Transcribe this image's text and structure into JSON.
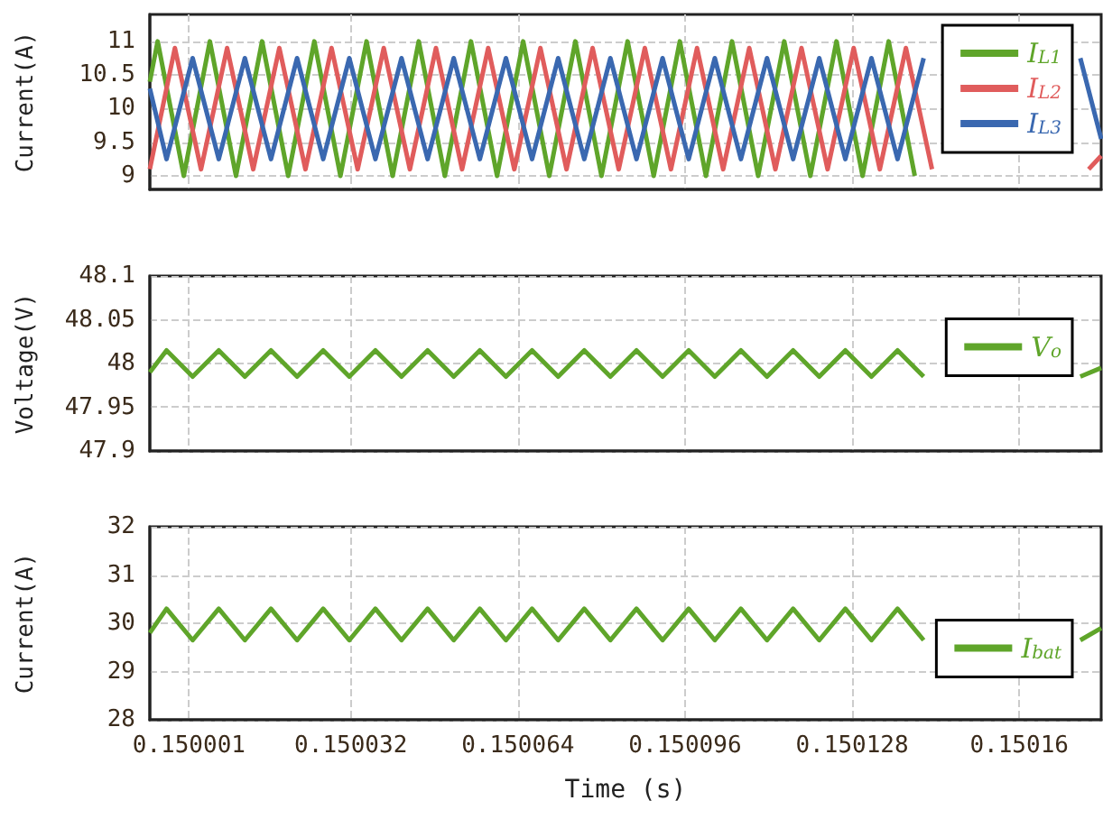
{
  "chart_data": [
    {
      "type": "line",
      "ylabel": "Current(A)",
      "xlim": [
        0.1499935,
        0.1501757
      ],
      "xticks": [
        0.150001,
        0.150032,
        0.150064,
        0.150096,
        0.150128,
        0.15016
      ],
      "ylim": [
        8.8,
        11.4
      ],
      "yticks": [
        9,
        9.5,
        10,
        10.5,
        11
      ],
      "grid": true,
      "legend": "top right",
      "tick_labels": "y",
      "marker": "none",
      "series": [
        {
          "name": "I$_{L1}$",
          "color": "#5fa52a",
          "x": [
            0.1499935,
            0.149995,
            0.15,
            0.150005,
            0.15001,
            0.150015,
            0.15002,
            0.150025,
            0.15003,
            0.150035,
            0.15004,
            0.150045,
            0.15005,
            0.150055,
            0.15006,
            0.150065,
            0.15007,
            0.150075,
            0.15008,
            0.150085,
            0.15009,
            0.150095,
            0.1501,
            0.150105,
            0.15011,
            0.150115,
            0.15012,
            0.150125,
            0.15013,
            0.150135,
            0.15014
          ],
          "values": [
            10.4,
            11,
            9,
            11,
            9,
            11,
            9,
            11,
            9,
            11,
            9,
            11,
            9,
            11,
            9,
            11,
            9,
            11,
            9,
            11,
            9,
            11,
            9,
            11,
            9,
            11,
            9,
            11,
            9,
            11,
            9
          ]
        },
        {
          "name": "I$_{L2}$",
          "color": "#e05c5c",
          "x": [
            0.1499935,
            0.1499983,
            0.1500033,
            0.1500083,
            0.1500133,
            0.1500183,
            0.1500233,
            0.1500283,
            0.1500333,
            0.1500383,
            0.1500433,
            0.1500483,
            0.1500533,
            0.1500583,
            0.1500633,
            0.1500683,
            0.1500733,
            0.1500783,
            0.1500833,
            0.1500883,
            0.1500933,
            0.1500983,
            0.1501033,
            0.1501083,
            0.1501133,
            0.1501183,
            0.1501233,
            0.1501283,
            0.1501333,
            0.1501383,
            0.1501433,
            0.1501483,
            0.1501533,
            0.1501583,
            0.1501633,
            0.1501683,
            0.1501733,
            0.1501757
          ],
          "values": [
            9.1,
            10.9,
            9.1,
            10.9,
            9.1,
            10.9,
            9.1,
            10.9,
            9.1,
            10.9,
            9.1,
            10.9,
            9.1,
            10.9,
            9.1,
            10.9,
            9.1,
            10.9,
            9.1,
            10.9,
            9.1,
            10.9,
            9.1,
            10.9,
            9.1,
            10.9,
            9.1,
            10.9,
            9.1,
            10.9,
            9.1,
            null,
            null,
            null,
            null,
            null,
            9.1,
            9.3
          ]
        },
        {
          "name": "I$_{L3}$",
          "color": "#3a68b0",
          "x": [
            0.1499935,
            0.1499967,
            0.1500017,
            0.1500067,
            0.1500117,
            0.1500167,
            0.1500217,
            0.1500267,
            0.1500317,
            0.1500367,
            0.1500417,
            0.1500467,
            0.1500517,
            0.1500567,
            0.1500617,
            0.1500667,
            0.1500717,
            0.1500767,
            0.1500817,
            0.1500867,
            0.1500917,
            0.1500967,
            0.1501017,
            0.1501067,
            0.1501117,
            0.1501167,
            0.1501217,
            0.1501267,
            0.1501317,
            0.1501367,
            0.1501417,
            0.1501467,
            0.1501517,
            0.1501567,
            0.1501617,
            0.1501667,
            0.1501717,
            0.1501757
          ],
          "values": [
            10.3,
            9.25,
            10.75,
            9.25,
            10.75,
            9.25,
            10.75,
            9.25,
            10.75,
            9.25,
            10.75,
            9.25,
            10.75,
            9.25,
            10.75,
            9.25,
            10.75,
            9.25,
            10.75,
            9.25,
            10.75,
            9.25,
            10.75,
            9.25,
            10.75,
            9.25,
            10.75,
            9.25,
            10.75,
            9.25,
            10.75,
            null,
            null,
            null,
            null,
            null,
            10.75,
            9.55
          ]
        }
      ]
    },
    {
      "type": "line",
      "ylabel": "Voltage(V)",
      "xlim": [
        0.1499935,
        0.1501757
      ],
      "xticks": [
        0.150001,
        0.150032,
        0.150064,
        0.150096,
        0.150128,
        0.15016
      ],
      "ylim": [
        47.9,
        48.1
      ],
      "yticks": [
        47.9,
        47.95,
        48,
        48.05,
        48.1
      ],
      "grid": true,
      "legend": "right",
      "tick_labels": "y",
      "marker": "none",
      "x": [
        0.1499935,
        0.1499967,
        0.1500017,
        0.1500067,
        0.1500117,
        0.1500167,
        0.1500217,
        0.1500267,
        0.1500317,
        0.1500367,
        0.1500417,
        0.1500467,
        0.1500517,
        0.1500567,
        0.1500617,
        0.1500667,
        0.1500717,
        0.1500767,
        0.1500817,
        0.1500867,
        0.1500917,
        0.1500967,
        0.1501017,
        0.1501067,
        0.1501117,
        0.1501167,
        0.1501217,
        0.1501267,
        0.1501317,
        0.1501367,
        0.1501417,
        0.1501467,
        0.1501517,
        0.1501567,
        0.1501617,
        0.1501667,
        0.1501717,
        0.1501757
      ],
      "series": [
        {
          "name": "V$_{o}$",
          "color": "#5fa52a",
          "values": [
            47.99,
            48.015,
            47.985,
            48.015,
            47.985,
            48.015,
            47.985,
            48.015,
            47.985,
            48.015,
            47.985,
            48.015,
            47.985,
            48.015,
            47.985,
            48.015,
            47.985,
            48.015,
            47.985,
            48.015,
            47.985,
            48.015,
            47.985,
            48.015,
            47.985,
            48.015,
            47.985,
            48.015,
            47.985,
            48.015,
            47.985,
            null,
            null,
            null,
            null,
            null,
            47.985,
            47.995
          ]
        }
      ]
    },
    {
      "type": "line",
      "ylabel": "Current(A)",
      "xlabel": "Time (s)",
      "xlim": [
        0.1499935,
        0.1501757
      ],
      "xticks": [
        0.150001,
        0.150032,
        0.150064,
        0.150096,
        0.150128,
        0.15016
      ],
      "ylim": [
        28,
        32
      ],
      "yticks": [
        28,
        29,
        30,
        31,
        32
      ],
      "grid": true,
      "legend": "right",
      "marker": "none",
      "x": [
        0.1499935,
        0.1499967,
        0.1500017,
        0.1500067,
        0.1500117,
        0.1500167,
        0.1500217,
        0.1500267,
        0.1500317,
        0.1500367,
        0.1500417,
        0.1500467,
        0.1500517,
        0.1500567,
        0.1500617,
        0.1500667,
        0.1500717,
        0.1500767,
        0.1500817,
        0.1500867,
        0.1500917,
        0.1500967,
        0.1501017,
        0.1501067,
        0.1501117,
        0.1501167,
        0.1501217,
        0.1501267,
        0.1501317,
        0.1501367,
        0.1501417,
        0.1501467,
        0.1501517,
        0.1501567,
        0.1501617,
        0.1501667,
        0.1501717,
        0.1501757
      ],
      "series": [
        {
          "name": "I$_{bat}$",
          "color": "#5fa52a",
          "values": [
            29.8,
            30.3,
            29.65,
            30.3,
            29.65,
            30.3,
            29.65,
            30.3,
            29.65,
            30.3,
            29.65,
            30.3,
            29.65,
            30.3,
            29.65,
            30.3,
            29.65,
            30.3,
            29.65,
            30.3,
            29.65,
            30.3,
            29.65,
            30.3,
            29.65,
            30.3,
            29.65,
            30.3,
            29.65,
            30.3,
            29.65,
            null,
            null,
            null,
            null,
            null,
            29.65,
            29.9
          ]
        }
      ]
    }
  ]
}
